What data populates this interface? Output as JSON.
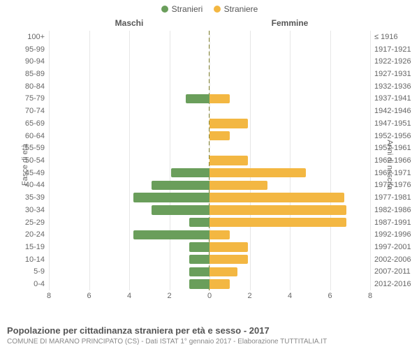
{
  "chart": {
    "type": "population-pyramid",
    "legend": {
      "items": [
        {
          "label": "Stranieri",
          "color": "#6a9e5b"
        },
        {
          "label": "Straniere",
          "color": "#f3b742"
        }
      ]
    },
    "column_titles": {
      "left": "Maschi",
      "right": "Femmine"
    },
    "y_axis_left_label": "Fasce di età",
    "y_axis_right_label": "Anni di nascita",
    "x_axis": {
      "max": 8,
      "ticks": [
        8,
        6,
        4,
        2,
        0,
        2,
        4,
        6,
        8
      ]
    },
    "colors": {
      "male": "#6a9e5b",
      "female": "#f3b742",
      "grid": "#e6e6e6",
      "centerline": "#888833",
      "background": "#ffffff",
      "text": "#666666"
    },
    "bar_relative_height": 0.76,
    "rows": [
      {
        "age": "100+",
        "birth": "≤ 1916",
        "m": 0,
        "f": 0
      },
      {
        "age": "95-99",
        "birth": "1917-1921",
        "m": 0,
        "f": 0
      },
      {
        "age": "90-94",
        "birth": "1922-1926",
        "m": 0,
        "f": 0
      },
      {
        "age": "85-89",
        "birth": "1927-1931",
        "m": 0,
        "f": 0
      },
      {
        "age": "80-84",
        "birth": "1932-1936",
        "m": 0,
        "f": 0
      },
      {
        "age": "75-79",
        "birth": "1937-1941",
        "m": 1.2,
        "f": 1.0
      },
      {
        "age": "70-74",
        "birth": "1942-1946",
        "m": 0,
        "f": 0
      },
      {
        "age": "65-69",
        "birth": "1947-1951",
        "m": 0,
        "f": 1.9
      },
      {
        "age": "60-64",
        "birth": "1952-1956",
        "m": 0,
        "f": 1.0
      },
      {
        "age": "55-59",
        "birth": "1957-1961",
        "m": 0,
        "f": 0
      },
      {
        "age": "50-54",
        "birth": "1962-1966",
        "m": 0,
        "f": 1.9
      },
      {
        "age": "45-49",
        "birth": "1967-1971",
        "m": 1.9,
        "f": 4.8
      },
      {
        "age": "40-44",
        "birth": "1972-1976",
        "m": 2.9,
        "f": 2.9
      },
      {
        "age": "35-39",
        "birth": "1977-1981",
        "m": 3.8,
        "f": 6.7
      },
      {
        "age": "30-34",
        "birth": "1982-1986",
        "m": 2.9,
        "f": 6.8
      },
      {
        "age": "25-29",
        "birth": "1987-1991",
        "m": 1.0,
        "f": 6.8
      },
      {
        "age": "20-24",
        "birth": "1992-1996",
        "m": 3.8,
        "f": 1.0
      },
      {
        "age": "15-19",
        "birth": "1997-2001",
        "m": 1.0,
        "f": 1.9
      },
      {
        "age": "10-14",
        "birth": "2002-2006",
        "m": 1.0,
        "f": 1.9
      },
      {
        "age": "5-9",
        "birth": "2007-2011",
        "m": 1.0,
        "f": 1.4
      },
      {
        "age": "0-4",
        "birth": "2012-2016",
        "m": 1.0,
        "f": 1.0
      }
    ]
  },
  "footer": {
    "title": "Popolazione per cittadinanza straniera per età e sesso - 2017",
    "subtitle": "COMUNE DI MARANO PRINCIPATO (CS) - Dati ISTAT 1° gennaio 2017 - Elaborazione TUTTITALIA.IT"
  }
}
